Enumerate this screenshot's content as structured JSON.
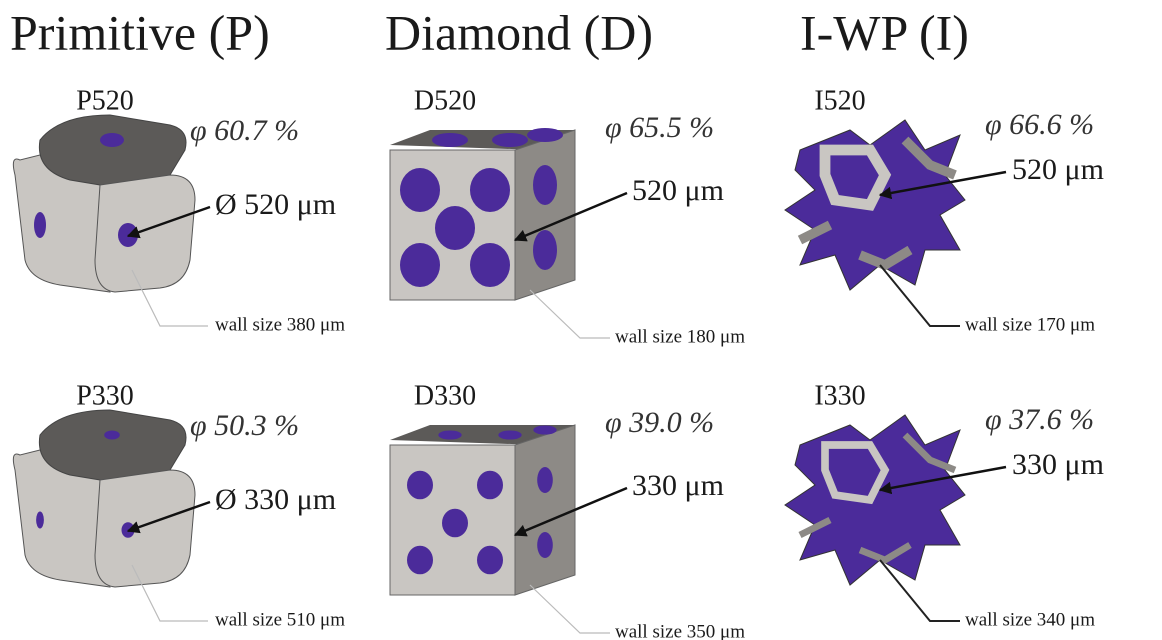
{
  "columns": [
    {
      "title": "Primitive (P)",
      "cells": [
        {
          "label": "P520",
          "porosity": "φ 60.7 %",
          "pore_size": "Ø 520 μm",
          "wall_size": "wall size 380 μm"
        },
        {
          "label": "P330",
          "porosity": "φ 50.3 %",
          "pore_size": "Ø 330 μm",
          "wall_size": "wall size 510 μm"
        }
      ]
    },
    {
      "title": "Diamond (D)",
      "cells": [
        {
          "label": "D520",
          "porosity": "φ 65.5 %",
          "pore_size": "520 μm",
          "wall_size": "wall size 180 μm"
        },
        {
          "label": "D330",
          "porosity": "φ 39.0 %",
          "pore_size": "330 μm",
          "wall_size": "wall size 350 μm"
        }
      ]
    },
    {
      "title": "I-WP (I)",
      "cells": [
        {
          "label": "I520",
          "porosity": "φ 66.6 %",
          "pore_size": "520 μm",
          "wall_size": "wall size 170 μm"
        },
        {
          "label": "I330",
          "porosity": "φ 37.6 %",
          "pore_size": "330 μm",
          "wall_size": "wall size 340 μm"
        }
      ]
    }
  ]
}
